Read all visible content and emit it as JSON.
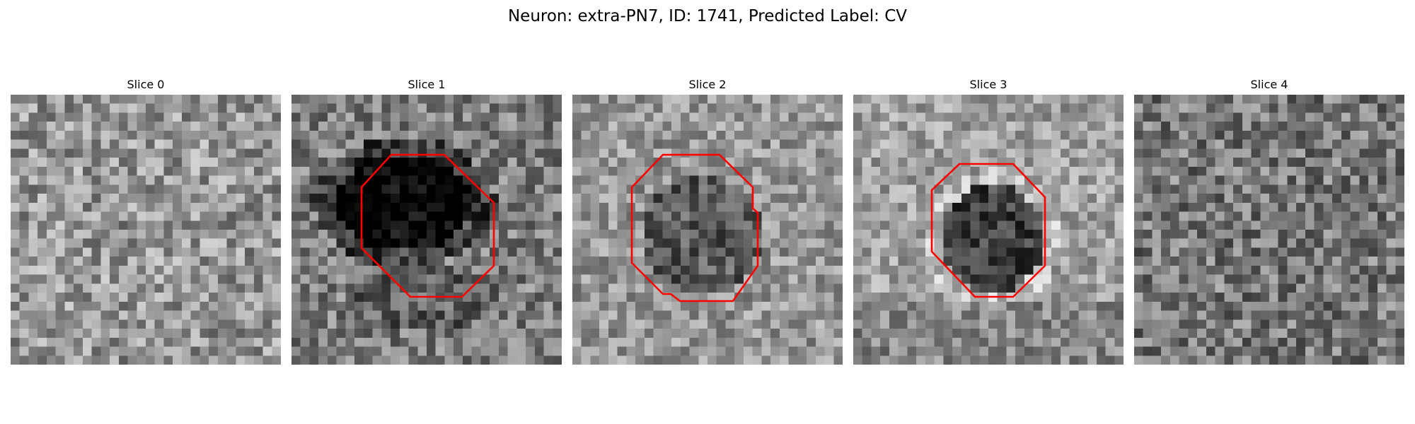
{
  "figure": {
    "title": "Neuron: extra-PN7, ID: 1741, Predicted Label: CV"
  },
  "contour_color": "#ff0000",
  "image_colormap": "grayscale",
  "panels": [
    {
      "title": "Slice 0",
      "has_contour": false
    },
    {
      "title": "Slice 1",
      "has_contour": true
    },
    {
      "title": "Slice 2",
      "has_contour": true
    },
    {
      "title": "Slice 3",
      "has_contour": true
    },
    {
      "title": "Slice 4",
      "has_contour": false
    }
  ]
}
